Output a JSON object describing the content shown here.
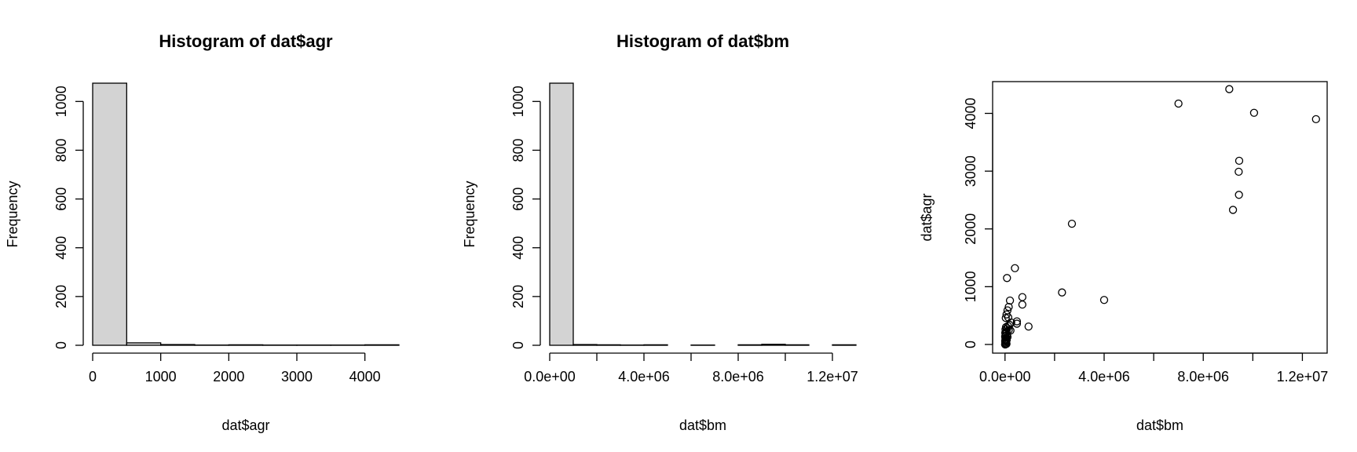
{
  "chart_data": [
    {
      "type": "bar",
      "title": "Histogram of dat$agr",
      "xlabel": "dat$agr",
      "ylabel": "Frequency",
      "bin_edges": [
        0,
        500,
        1000,
        1500,
        2000,
        2500,
        3000,
        3500,
        4000,
        4500
      ],
      "values": [
        1075,
        10,
        3,
        1,
        2,
        1,
        1,
        1,
        2
      ],
      "xlim": [
        0,
        4500
      ],
      "ylim": [
        0,
        1075
      ],
      "xticks": [
        0,
        1000,
        2000,
        3000,
        4000
      ],
      "xtick_labels": [
        "0",
        "1000",
        "2000",
        "3000",
        "4000"
      ],
      "yticks": [
        0,
        200,
        400,
        600,
        800,
        1000
      ],
      "ytick_labels": [
        "0",
        "200",
        "400",
        "600",
        "800",
        "1000"
      ],
      "grid": false
    },
    {
      "type": "bar",
      "title": "Histogram of dat$bm",
      "xlabel": "dat$bm",
      "ylabel": "Frequency",
      "bin_edges": [
        0,
        1000000,
        2000000,
        3000000,
        4000000,
        5000000,
        6000000,
        7000000,
        8000000,
        9000000,
        10000000,
        11000000,
        12000000,
        13000000
      ],
      "values": [
        1075,
        3,
        2,
        1,
        2,
        0,
        1,
        0,
        2,
        4,
        2,
        0,
        2
      ],
      "xlim": [
        0,
        13000000
      ],
      "ylim": [
        0,
        1075
      ],
      "xticks": [
        0,
        4000000,
        8000000,
        12000000
      ],
      "xtick_labels": [
        "0.0e+00",
        "4.0e+06",
        "8.0e+06",
        "1.2e+07"
      ],
      "minor_xticks": [
        2000000,
        6000000,
        10000000
      ],
      "yticks": [
        0,
        200,
        400,
        600,
        800,
        1000
      ],
      "ytick_labels": [
        "0",
        "200",
        "400",
        "600",
        "800",
        "1000"
      ],
      "grid": false
    },
    {
      "type": "scatter",
      "title": "",
      "xlabel": "dat$bm",
      "ylabel": "dat$agr",
      "xlim": [
        -500000,
        13000000
      ],
      "ylim": [
        -150,
        4550
      ],
      "xticks": [
        0,
        4000000,
        8000000,
        12000000
      ],
      "xtick_labels": [
        "0.0e+00",
        "4.0e+06",
        "8.0e+06",
        "1.2e+07"
      ],
      "minor_xticks": [
        2000000,
        6000000,
        10000000
      ],
      "yticks": [
        0,
        1000,
        2000,
        3000,
        4000
      ],
      "ytick_labels": [
        "0",
        "1000",
        "2000",
        "3000",
        "4000"
      ],
      "grid": false,
      "points": [
        [
          7000000,
          4170
        ],
        [
          9050000,
          4420
        ],
        [
          10050000,
          4010
        ],
        [
          12550000,
          3900
        ],
        [
          9450000,
          3180
        ],
        [
          9430000,
          2990
        ],
        [
          9440000,
          2590
        ],
        [
          9200000,
          2330
        ],
        [
          2700000,
          2090
        ],
        [
          2300000,
          900
        ],
        [
          4000000,
          770
        ],
        [
          400000,
          1320
        ],
        [
          80000,
          1150
        ],
        [
          700000,
          820
        ],
        [
          700000,
          690
        ],
        [
          200000,
          760
        ],
        [
          150000,
          650
        ],
        [
          100000,
          590
        ],
        [
          60000,
          520
        ],
        [
          130000,
          470
        ],
        [
          30000,
          460
        ],
        [
          480000,
          400
        ],
        [
          480000,
          360
        ],
        [
          250000,
          380
        ],
        [
          180000,
          340
        ],
        [
          120000,
          320
        ],
        [
          950000,
          310
        ],
        [
          40000,
          300
        ],
        [
          90000,
          280
        ],
        [
          20000,
          260
        ],
        [
          150000,
          250
        ],
        [
          220000,
          240
        ],
        [
          60000,
          220
        ],
        [
          10000,
          200
        ],
        [
          30000,
          180
        ],
        [
          80000,
          160
        ],
        [
          5000,
          140
        ],
        [
          50000,
          120
        ],
        [
          15000,
          110
        ],
        [
          25000,
          90
        ],
        [
          70000,
          80
        ],
        [
          5000,
          60
        ],
        [
          40000,
          50
        ],
        [
          10000,
          35
        ],
        [
          20000,
          20
        ],
        [
          60000,
          10
        ],
        [
          3000,
          5
        ],
        [
          8000,
          0
        ],
        [
          30000,
          15
        ],
        [
          100000,
          130
        ],
        [
          45000,
          70
        ]
      ]
    }
  ]
}
